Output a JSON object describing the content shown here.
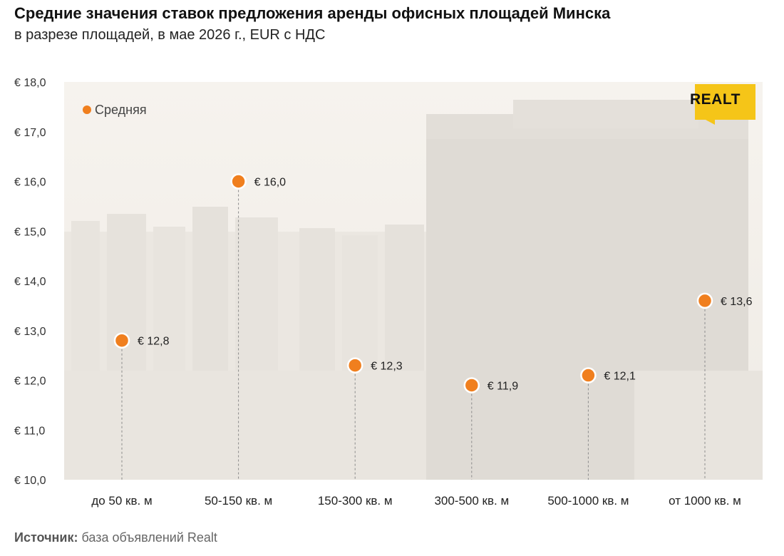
{
  "header": {
    "title": "Средние значения ставок предложения аренды офисных площадей Минска",
    "subtitle": "в разрезе площадей, в мае 2026 г., EUR с НДС"
  },
  "logo": {
    "text": "REALT",
    "color": "#f5c518"
  },
  "source": {
    "label": "Источник:",
    "text": "база объявлений Realt"
  },
  "colors": {
    "marker": "#f07f1e",
    "marker_stroke": "#ffffff",
    "photo_tint": "#f3efe8"
  },
  "chart_data": {
    "type": "scatter",
    "categories": [
      "до 50 кв. м",
      "50-150 кв. м",
      "150-300 кв. м",
      "300-500 кв. м",
      "500-1000 кв. м",
      "от 1000 кв. м"
    ],
    "series": [
      {
        "name": "Средняя",
        "values": [
          12.8,
          16.0,
          12.3,
          11.9,
          12.1,
          13.6
        ]
      }
    ],
    "data_labels": [
      "€ 12,8",
      "€ 16,0",
      "€ 12,3",
      "€ 11,9",
      "€ 12,1",
      "€ 13,6"
    ],
    "ylim": [
      10,
      18
    ],
    "yticks": [
      10,
      11,
      12,
      13,
      14,
      15,
      16,
      17,
      18
    ],
    "ytick_labels": [
      "€ 10,0",
      "€ 11,0",
      "€ 12,0",
      "€ 13,0",
      "€ 14,0",
      "€ 15,0",
      "€ 16,0",
      "€ 17,0",
      "€ 18,0"
    ],
    "legend_position": "top-left",
    "drop_lines": true,
    "grid": false
  }
}
